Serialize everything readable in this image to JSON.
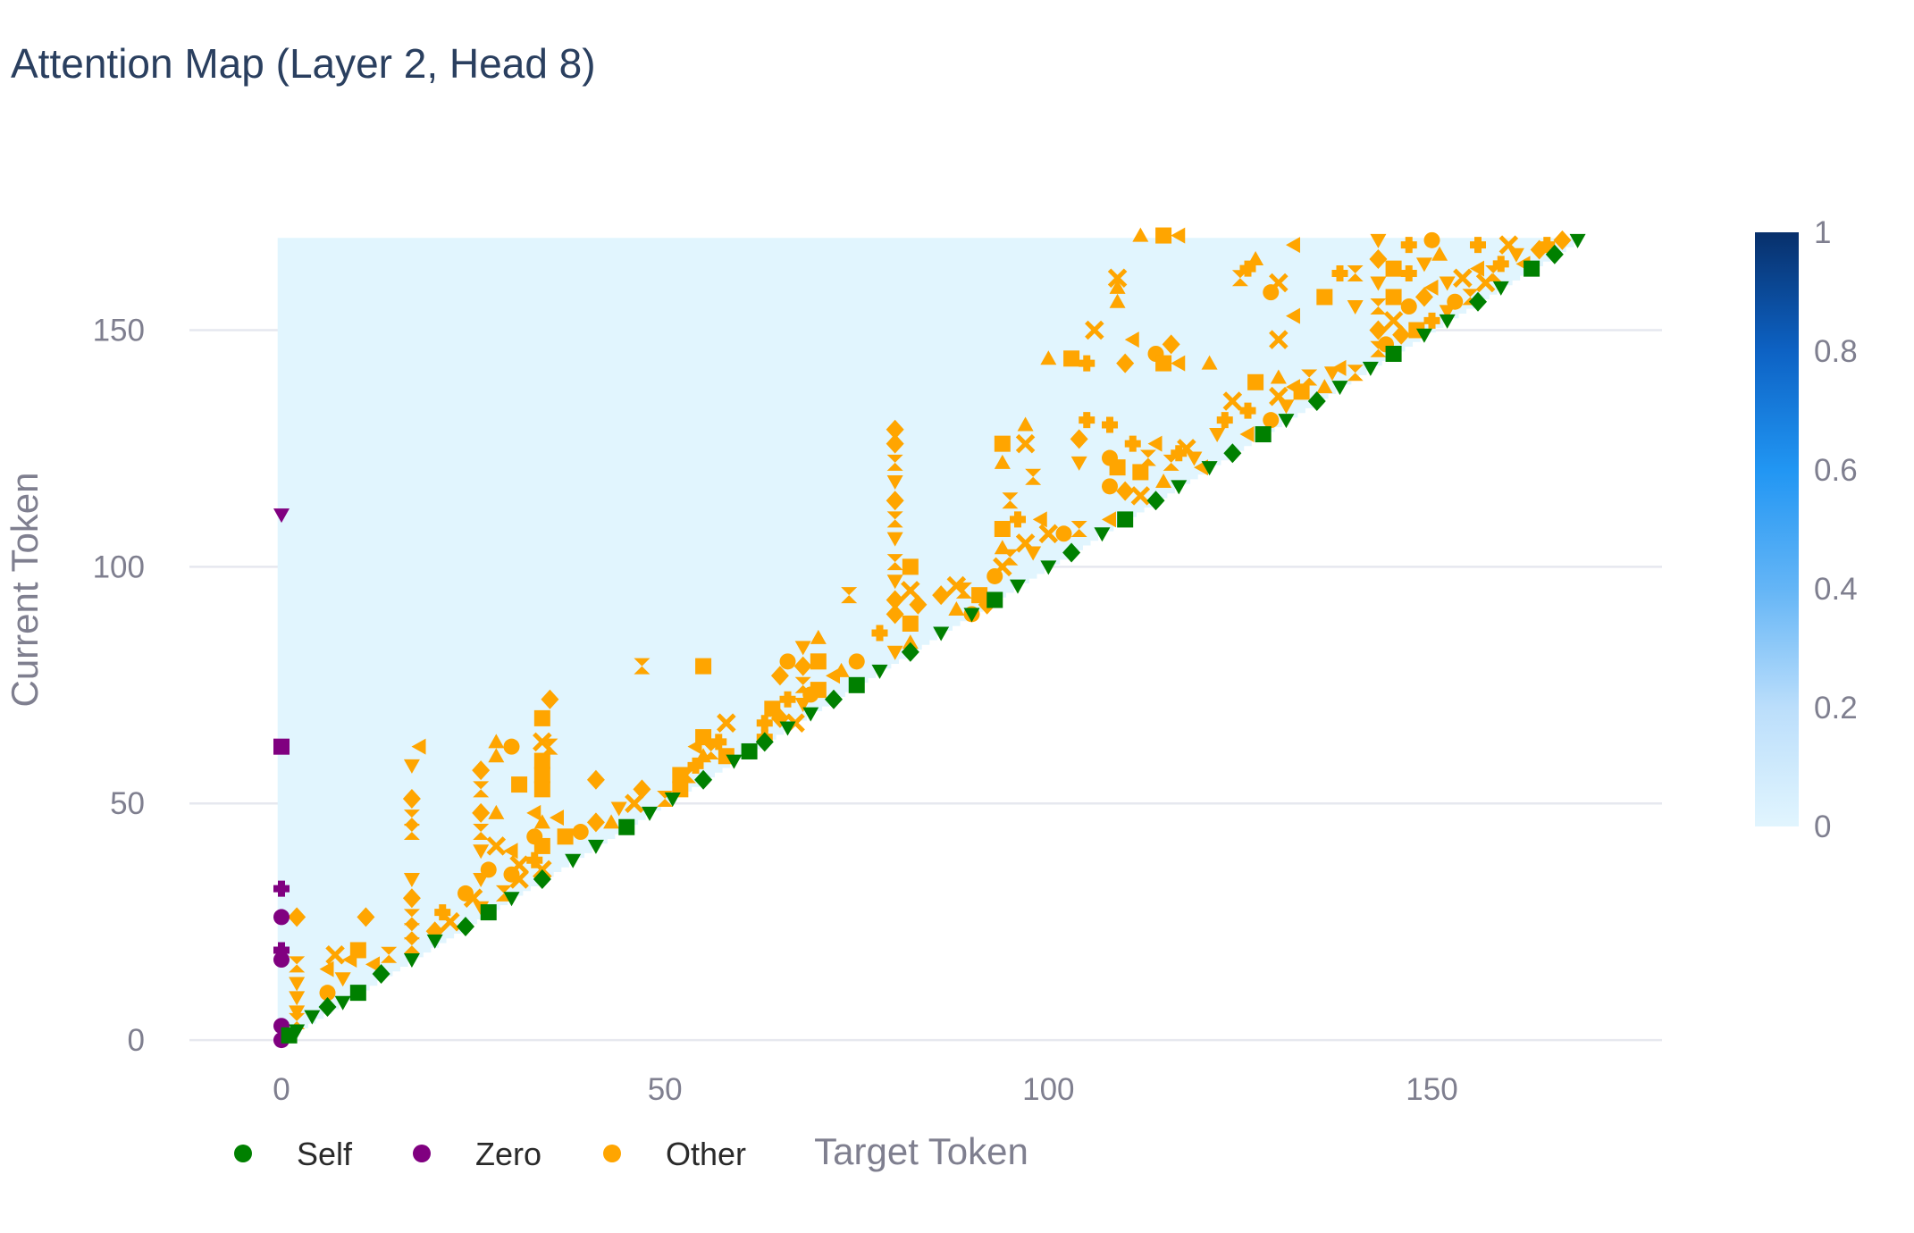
{
  "chart_data": {
    "type": "heatmap",
    "title": "Attention Map (Layer 2, Head 8)",
    "xlabel": "Target Token",
    "ylabel": "Current Token",
    "xlim": [
      -12,
      180
    ],
    "ylim": [
      182,
      -3
    ],
    "x_ticks": [
      0,
      50,
      100,
      150
    ],
    "y_ticks": [
      0,
      50,
      100,
      150
    ],
    "n_tokens": 170,
    "grid": true,
    "heatmap": {
      "description": "lower-triangular causal attention weights, mostly near 0",
      "background_value": 0.02,
      "colorbar": {
        "min": 0,
        "max": 1,
        "ticks": [
          0,
          0.2,
          0.4,
          0.6,
          0.8,
          1
        ],
        "colors": [
          "#e1f5fe",
          "#bbdefb",
          "#64b5f6",
          "#2196f3",
          "#0d62c4",
          "#08306b"
        ]
      }
    },
    "legend": {
      "placement": "bottom-left",
      "entries": [
        {
          "name": "Self",
          "color": "#008000"
        },
        {
          "name": "Zero",
          "color": "#800080"
        },
        {
          "name": "Other",
          "color": "#ffa500"
        }
      ]
    },
    "series": [
      {
        "name": "Self",
        "color": "#008000",
        "points": [
          [
            1,
            1
          ],
          [
            2,
            2
          ],
          [
            4,
            5
          ],
          [
            6,
            7
          ],
          [
            8,
            8
          ],
          [
            10,
            10
          ],
          [
            13,
            14
          ],
          [
            17,
            17
          ],
          [
            20,
            21
          ],
          [
            24,
            24
          ],
          [
            27,
            27
          ],
          [
            30,
            30
          ],
          [
            34,
            34
          ],
          [
            38,
            38
          ],
          [
            41,
            41
          ],
          [
            45,
            45
          ],
          [
            48,
            48
          ],
          [
            51,
            51
          ],
          [
            55,
            55
          ],
          [
            59,
            59
          ],
          [
            61,
            61
          ],
          [
            63,
            63
          ],
          [
            66,
            66
          ],
          [
            69,
            69
          ],
          [
            72,
            72
          ],
          [
            75,
            75
          ],
          [
            78,
            78
          ],
          [
            82,
            82
          ],
          [
            86,
            86
          ],
          [
            90,
            90
          ],
          [
            93,
            93
          ],
          [
            96,
            96
          ],
          [
            100,
            100
          ],
          [
            103,
            103
          ],
          [
            107,
            107
          ],
          [
            110,
            110
          ],
          [
            114,
            114
          ],
          [
            117,
            117
          ],
          [
            121,
            121
          ],
          [
            124,
            124
          ],
          [
            128,
            128
          ],
          [
            131,
            131
          ],
          [
            135,
            135
          ],
          [
            138,
            138
          ],
          [
            142,
            142
          ],
          [
            145,
            145
          ],
          [
            149,
            149
          ],
          [
            152,
            152
          ],
          [
            156,
            156
          ],
          [
            159,
            159
          ],
          [
            163,
            163
          ],
          [
            166,
            166
          ],
          [
            169,
            169
          ]
        ]
      },
      {
        "name": "Zero",
        "color": "#800080",
        "points": [
          [
            0,
            0
          ],
          [
            0,
            3
          ],
          [
            0,
            17
          ],
          [
            0,
            19
          ],
          [
            0,
            26
          ],
          [
            0,
            32
          ],
          [
            0,
            62
          ],
          [
            0,
            111
          ]
        ]
      },
      {
        "name": "Other",
        "color": "#ffa500",
        "points": [
          [
            2,
            4
          ],
          [
            2,
            6
          ],
          [
            2,
            9
          ],
          [
            2,
            12
          ],
          [
            2,
            16
          ],
          [
            2,
            26
          ],
          [
            6,
            10
          ],
          [
            6,
            15
          ],
          [
            7,
            18
          ],
          [
            8,
            13
          ],
          [
            9,
            17
          ],
          [
            10,
            19
          ],
          [
            12,
            16
          ],
          [
            14,
            18
          ],
          [
            11,
            26
          ],
          [
            17,
            20
          ],
          [
            17,
            23
          ],
          [
            17,
            26
          ],
          [
            17,
            30
          ],
          [
            17,
            34
          ],
          [
            17,
            44
          ],
          [
            17,
            47
          ],
          [
            17,
            51
          ],
          [
            17,
            58
          ],
          [
            18,
            62
          ],
          [
            20,
            23
          ],
          [
            21,
            27
          ],
          [
            22,
            25
          ],
          [
            24,
            31
          ],
          [
            25,
            30
          ],
          [
            26,
            28
          ],
          [
            26,
            34
          ],
          [
            26,
            40
          ],
          [
            26,
            44
          ],
          [
            26,
            48
          ],
          [
            26,
            53
          ],
          [
            26,
            57
          ],
          [
            27,
            36
          ],
          [
            28,
            41
          ],
          [
            28,
            48
          ],
          [
            28,
            60
          ],
          [
            28,
            63
          ],
          [
            29,
            31
          ],
          [
            30,
            35
          ],
          [
            30,
            40
          ],
          [
            30,
            62
          ],
          [
            31,
            34
          ],
          [
            31,
            37
          ],
          [
            31,
            54
          ],
          [
            33,
            38
          ],
          [
            33,
            43
          ],
          [
            33,
            48
          ],
          [
            34,
            36
          ],
          [
            34,
            41
          ],
          [
            34,
            46
          ],
          [
            34,
            53
          ],
          [
            34,
            56
          ],
          [
            34,
            59
          ],
          [
            34,
            63
          ],
          [
            34,
            68
          ],
          [
            35,
            62
          ],
          [
            35,
            72
          ],
          [
            36,
            47
          ],
          [
            37,
            43
          ],
          [
            39,
            44
          ],
          [
            41,
            46
          ],
          [
            41,
            55
          ],
          [
            43,
            46
          ],
          [
            44,
            49
          ],
          [
            46,
            50
          ],
          [
            47,
            53
          ],
          [
            50,
            51
          ],
          [
            52,
            53
          ],
          [
            52,
            56
          ],
          [
            53,
            56
          ],
          [
            54,
            58
          ],
          [
            54,
            62
          ],
          [
            55,
            60
          ],
          [
            55,
            64
          ],
          [
            56,
            61
          ],
          [
            57,
            63
          ],
          [
            58,
            60
          ],
          [
            63,
            64
          ],
          [
            63,
            67
          ],
          [
            64,
            70
          ],
          [
            65,
            68
          ],
          [
            66,
            72
          ],
          [
            67,
            67
          ],
          [
            68,
            71
          ],
          [
            68,
            75
          ],
          [
            68,
            79
          ],
          [
            68,
            83
          ],
          [
            69,
            73
          ],
          [
            70,
            74
          ],
          [
            70,
            80
          ],
          [
            72,
            77
          ],
          [
            73,
            78
          ],
          [
            75,
            80
          ],
          [
            58,
            67
          ],
          [
            65,
            77
          ],
          [
            66,
            80
          ],
          [
            47,
            79
          ],
          [
            55,
            79
          ],
          [
            70,
            85
          ],
          [
            74,
            94
          ],
          [
            78,
            86
          ],
          [
            80,
            82
          ],
          [
            80,
            90
          ],
          [
            80,
            93
          ],
          [
            80,
            97
          ],
          [
            80,
            101
          ],
          [
            80,
            106
          ],
          [
            80,
            110
          ],
          [
            80,
            114
          ],
          [
            80,
            118
          ],
          [
            80,
            122
          ],
          [
            80,
            126
          ],
          [
            80,
            129
          ],
          [
            82,
            84
          ],
          [
            82,
            88
          ],
          [
            82,
            95
          ],
          [
            82,
            100
          ],
          [
            83,
            92
          ],
          [
            86,
            94
          ],
          [
            88,
            91
          ],
          [
            88,
            96
          ],
          [
            89,
            95
          ],
          [
            90,
            90
          ],
          [
            91,
            94
          ],
          [
            92,
            92
          ],
          [
            93,
            98
          ],
          [
            94,
            100
          ],
          [
            94,
            104
          ],
          [
            94,
            108
          ],
          [
            95,
            102
          ],
          [
            96,
            110
          ],
          [
            97,
            105
          ],
          [
            98,
            103
          ],
          [
            99,
            110
          ],
          [
            100,
            107
          ],
          [
            102,
            107
          ],
          [
            104,
            108
          ],
          [
            95,
            114
          ],
          [
            94,
            122
          ],
          [
            94,
            126
          ],
          [
            97,
            126
          ],
          [
            97,
            130
          ],
          [
            98,
            119
          ],
          [
            104,
            122
          ],
          [
            104,
            127
          ],
          [
            105,
            131
          ],
          [
            100,
            144
          ],
          [
            103,
            144
          ],
          [
            105,
            143
          ],
          [
            106,
            150
          ],
          [
            108,
            110
          ],
          [
            108,
            117
          ],
          [
            108,
            123
          ],
          [
            108,
            130
          ],
          [
            109,
            121
          ],
          [
            110,
            116
          ],
          [
            111,
            126
          ],
          [
            112,
            115
          ],
          [
            112,
            120
          ],
          [
            113,
            123
          ],
          [
            114,
            126
          ],
          [
            115,
            118
          ],
          [
            116,
            122
          ],
          [
            117,
            124
          ],
          [
            118,
            125
          ],
          [
            119,
            123
          ],
          [
            120,
            121
          ],
          [
            110,
            143
          ],
          [
            111,
            148
          ],
          [
            114,
            145
          ],
          [
            115,
            143
          ],
          [
            116,
            147
          ],
          [
            117,
            143
          ],
          [
            121,
            143
          ],
          [
            109,
            156
          ],
          [
            109,
            159
          ],
          [
            109,
            161
          ],
          [
            112,
            170
          ],
          [
            115,
            170
          ],
          [
            117,
            170
          ],
          [
            122,
            128
          ],
          [
            123,
            131
          ],
          [
            124,
            135
          ],
          [
            126,
            128
          ],
          [
            126,
            133
          ],
          [
            127,
            139
          ],
          [
            129,
            131
          ],
          [
            130,
            136
          ],
          [
            130,
            140
          ],
          [
            131,
            134
          ],
          [
            132,
            138
          ],
          [
            133,
            137
          ],
          [
            134,
            140
          ],
          [
            136,
            138
          ],
          [
            137,
            141
          ],
          [
            138,
            142
          ],
          [
            140,
            141
          ],
          [
            130,
            148
          ],
          [
            129,
            158
          ],
          [
            125,
            161
          ],
          [
            126,
            163
          ],
          [
            127,
            165
          ],
          [
            130,
            160
          ],
          [
            132,
            153
          ],
          [
            132,
            168
          ],
          [
            140,
            155
          ],
          [
            140,
            162
          ],
          [
            143,
            146
          ],
          [
            143,
            150
          ],
          [
            143,
            155
          ],
          [
            143,
            160
          ],
          [
            143,
            165
          ],
          [
            143,
            169
          ],
          [
            144,
            147
          ],
          [
            145,
            152
          ],
          [
            145,
            157
          ],
          [
            145,
            163
          ],
          [
            146,
            149
          ],
          [
            147,
            155
          ],
          [
            147,
            162
          ],
          [
            148,
            150
          ],
          [
            149,
            157
          ],
          [
            149,
            164
          ],
          [
            150,
            152
          ],
          [
            150,
            159
          ],
          [
            151,
            166
          ],
          [
            152,
            154
          ],
          [
            152,
            160
          ],
          [
            153,
            156
          ],
          [
            154,
            161
          ],
          [
            155,
            157
          ],
          [
            156,
            163
          ],
          [
            157,
            160
          ],
          [
            158,
            162
          ],
          [
            159,
            164
          ],
          [
            161,
            166
          ],
          [
            162,
            164
          ],
          [
            164,
            167
          ],
          [
            165,
            168
          ],
          [
            167,
            169
          ],
          [
            147,
            168
          ],
          [
            150,
            169
          ],
          [
            156,
            168
          ],
          [
            160,
            168
          ],
          [
            138,
            162
          ],
          [
            136,
            157
          ]
        ]
      }
    ]
  }
}
